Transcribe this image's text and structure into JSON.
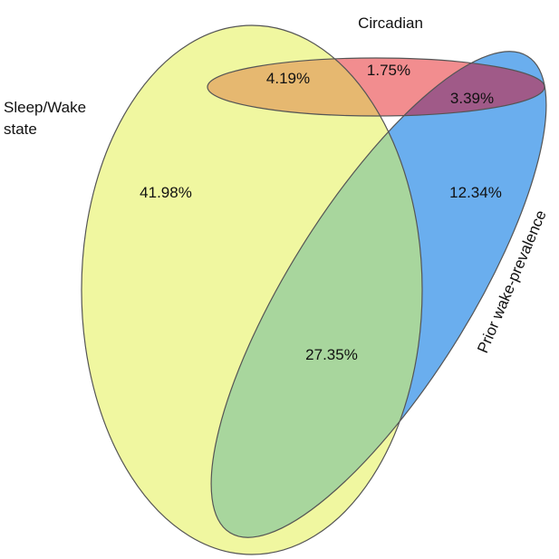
{
  "sets": {
    "sleep_wake": {
      "label_line1": "Sleep/Wake",
      "label_line2": "state",
      "color": "#f0f7a0"
    },
    "circadian": {
      "label": "Circadian",
      "color": "#f28d8f"
    },
    "prior_wake": {
      "label": "Prior wake-prevalence",
      "color": "#6aaeee"
    }
  },
  "regions": {
    "sleep_only": "41.98%",
    "sleep_circadian": "4.19%",
    "circadian_only": "1.75%",
    "circadian_prior": "3.39%",
    "prior_only": "12.34%",
    "sleep_prior": "27.35%"
  },
  "overlap_colors": {
    "sleep_circadian": "#e6b870",
    "sleep_prior": "#a8d69d",
    "circadian_prior": "#a05a88",
    "all_three": "#b08a70"
  }
}
